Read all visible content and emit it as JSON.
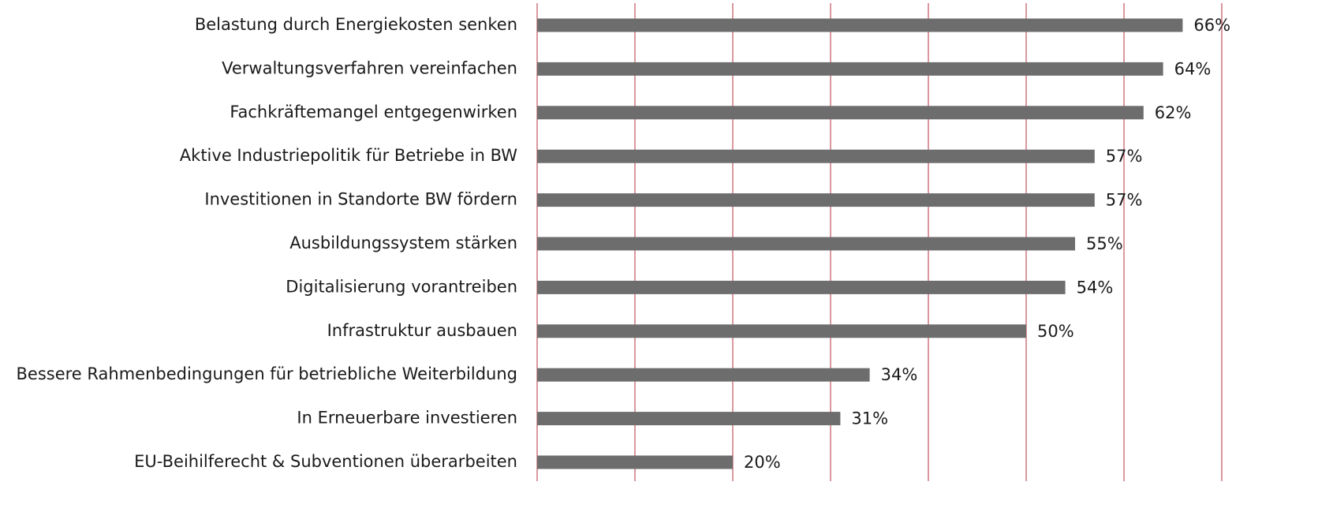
{
  "chart_data": {
    "type": "bar",
    "categories": [
      "Belastung durch Energiekosten senken",
      "Verwaltungsverfahren vereinfachen",
      "Fachkräftemangel entgegenwirken",
      "Aktive Industriepolitik für Betriebe in BW",
      "Investitionen in Standorte BW fördern",
      "Ausbildungssystem stärken",
      "Digitalisierung vorantreiben",
      "Infrastruktur ausbauen",
      "Bessere Rahmenbedingungen für betriebliche Weiterbildung",
      "In Erneuerbare investieren",
      "EU-Beihilferecht & Subventionen überarbeiten"
    ],
    "values": [
      66,
      64,
      62,
      57,
      57,
      55,
      54,
      50,
      34,
      31,
      20
    ],
    "value_labels": [
      "66%",
      "64%",
      "62%",
      "57%",
      "57%",
      "55%",
      "54%",
      "50%",
      "34%",
      "31%",
      "20%"
    ],
    "color": "#6d6d6d",
    "grid_color": "#b5323c",
    "xlim": [
      0,
      70
    ],
    "xticks": [
      0,
      10,
      20,
      30,
      40,
      50,
      60,
      70
    ],
    "grid": true
  }
}
